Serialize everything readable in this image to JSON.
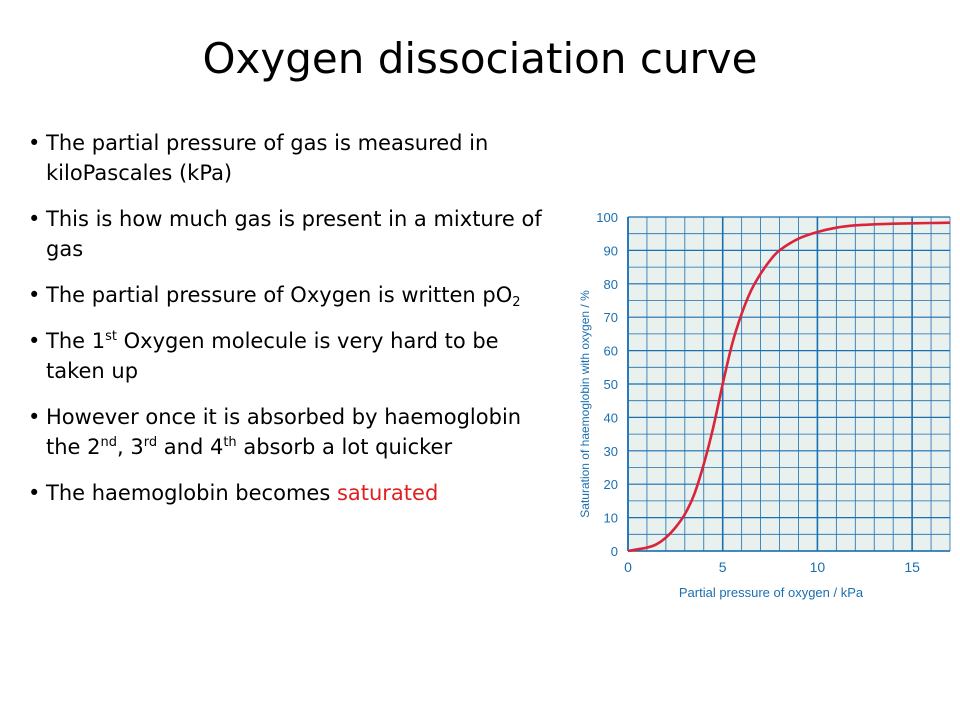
{
  "slide": {
    "title": "Oxygen dissociation curve",
    "bullets": [
      {
        "parts": [
          {
            "text": "The partial pressure of gas is measured in kiloPascales (kPa)"
          }
        ]
      },
      {
        "parts": [
          {
            "text": "This is how much gas is present in a mixture of gas"
          }
        ]
      },
      {
        "parts": [
          {
            "text": "The partial pressure of Oxygen is written pO"
          },
          {
            "text": "2",
            "style": "sub"
          }
        ]
      },
      {
        "parts": [
          {
            "text": "The 1"
          },
          {
            "text": "st",
            "style": "sup"
          },
          {
            "text": " Oxygen molecule is very hard to be taken up"
          }
        ]
      },
      {
        "parts": [
          {
            "text": "However once it is absorbed by haemoglobin the 2"
          },
          {
            "text": "nd",
            "style": "sup"
          },
          {
            "text": ", 3"
          },
          {
            "text": "rd",
            "style": "sup"
          },
          {
            "text": " and 4"
          },
          {
            "text": "th",
            "style": "sup"
          },
          {
            "text": " absorb a lot quicker"
          }
        ]
      },
      {
        "parts": [
          {
            "text": "The haemoglobin becomes "
          },
          {
            "text": "saturated",
            "style": "red"
          }
        ]
      }
    ]
  },
  "colors": {
    "grid_bg": "#e8f1ee",
    "grid_line": "#1a6fb0",
    "curve": "#d9243c",
    "axis_text": "#1a6fb0",
    "highlight": "#e02020"
  },
  "chart_data": {
    "type": "line",
    "title": "",
    "xlabel": "Partial pressure of oxygen / kPa",
    "ylabel": "Saturation of haemoglobin with oxygen / %",
    "xlim": [
      0,
      17
    ],
    "ylim": [
      0,
      100
    ],
    "xticks": [
      0,
      5,
      10,
      15
    ],
    "yticks": [
      0,
      10,
      20,
      30,
      40,
      50,
      60,
      70,
      80,
      90,
      100
    ],
    "grid": true,
    "series": [
      {
        "x": [
          0,
          0.5,
          1,
          1.5,
          2,
          2.5,
          3,
          3.5,
          4,
          4.5,
          5,
          5.5,
          6,
          6.5,
          7,
          7.5,
          8,
          9,
          10,
          11,
          12,
          13,
          14,
          15,
          16,
          17
        ],
        "values": [
          0,
          0.5,
          1,
          2,
          4,
          7,
          11,
          17,
          26,
          37,
          50,
          62,
          71,
          78,
          83,
          87,
          90,
          93.5,
          95.5,
          96.8,
          97.5,
          97.8,
          98,
          98.1,
          98.2,
          98.3
        ]
      }
    ]
  }
}
